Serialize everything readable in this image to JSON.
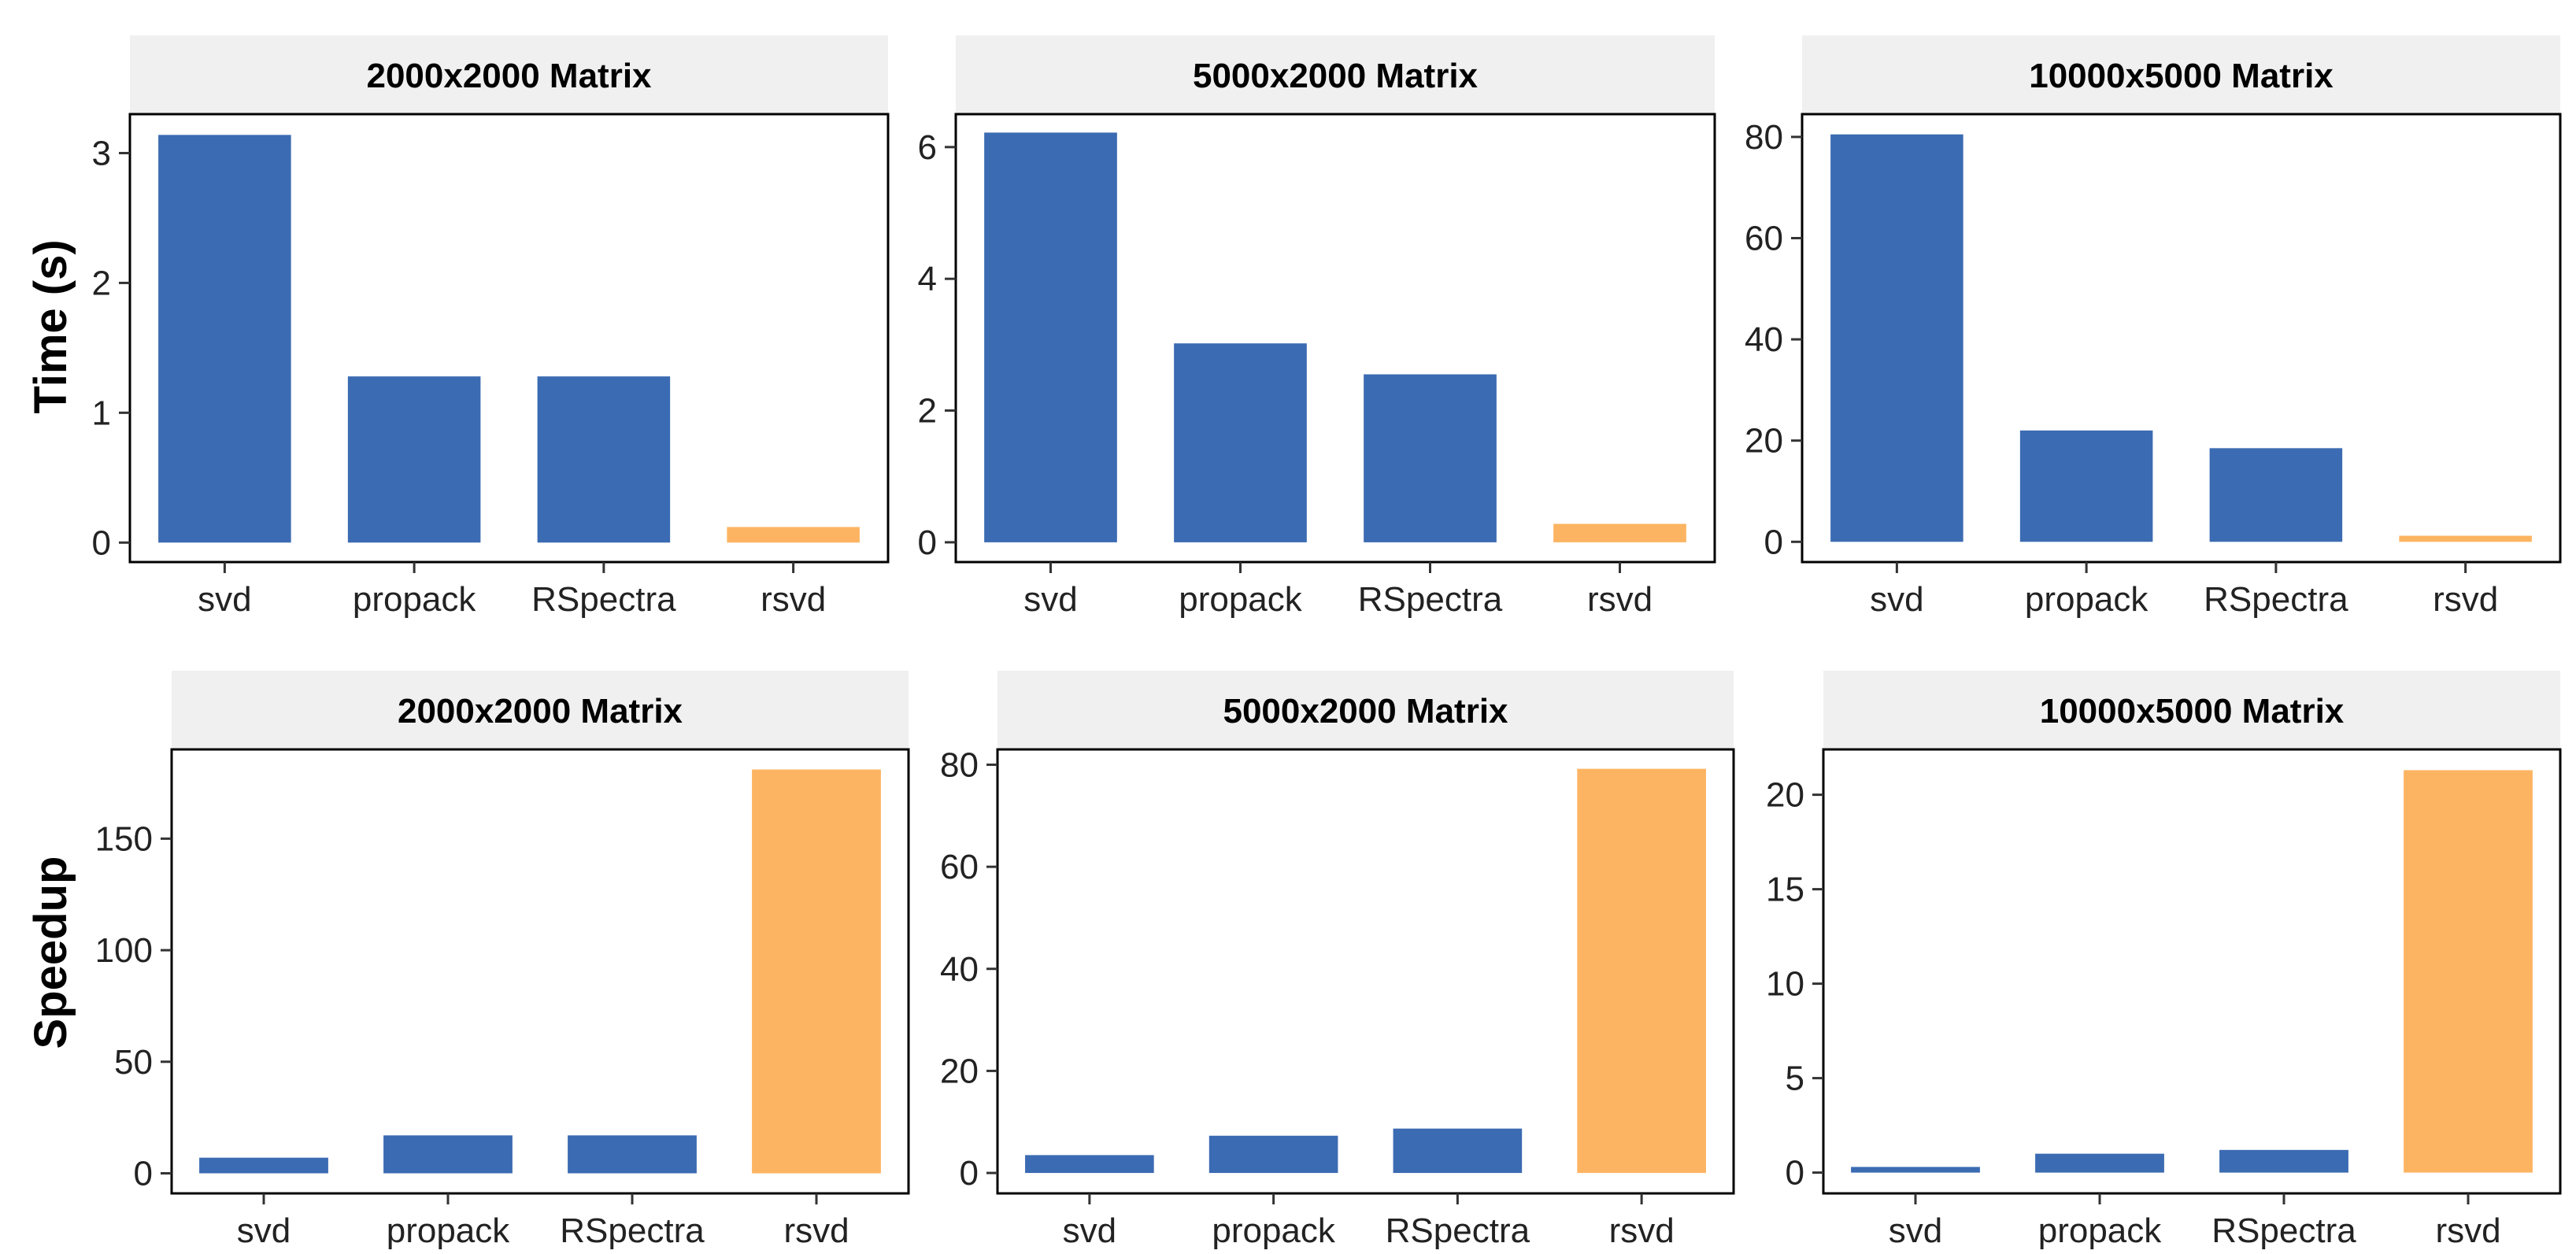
{
  "colors": {
    "default": "#3B6BB2",
    "highlight": "#FDB462",
    "strip": "#F0F0F0",
    "frame": "#000000"
  },
  "rows": [
    {
      "ylabel": "Time (s)"
    },
    {
      "ylabel": "Speedup"
    }
  ],
  "chart_data": [
    {
      "type": "bar",
      "title": "2000x2000 Matrix",
      "categories": [
        "svd",
        "propack",
        "RSpectra",
        "rsvd"
      ],
      "values": [
        3.14,
        1.28,
        1.28,
        0.12
      ],
      "highlight": [
        false,
        false,
        false,
        true
      ],
      "ylim": [
        -0.15,
        3.3
      ],
      "yticks": [
        0,
        1,
        2,
        3
      ],
      "ylabel": "Time (s)",
      "grid": false
    },
    {
      "type": "bar",
      "title": "5000x2000 Matrix",
      "categories": [
        "svd",
        "propack",
        "RSpectra",
        "rsvd"
      ],
      "values": [
        6.22,
        3.02,
        2.55,
        0.28
      ],
      "highlight": [
        false,
        false,
        false,
        true
      ],
      "ylim": [
        -0.3,
        6.5
      ],
      "yticks": [
        0,
        2,
        4,
        6
      ],
      "ylabel": "Time (s)",
      "grid": false
    },
    {
      "type": "bar",
      "title": "10000x5000 Matrix",
      "categories": [
        "svd",
        "propack",
        "RSpectra",
        "rsvd"
      ],
      "values": [
        80.5,
        22.0,
        18.5,
        1.2
      ],
      "highlight": [
        false,
        false,
        false,
        true
      ],
      "ylim": [
        -4,
        84.5
      ],
      "yticks": [
        0,
        20,
        40,
        60,
        80
      ],
      "ylabel": "Time (s)",
      "grid": false
    },
    {
      "type": "bar",
      "title": "2000x2000 Matrix",
      "categories": [
        "svd",
        "propack",
        "RSpectra",
        "rsvd"
      ],
      "values": [
        7,
        17,
        17,
        181
      ],
      "highlight": [
        false,
        false,
        false,
        true
      ],
      "ylim": [
        -9,
        190
      ],
      "yticks": [
        0,
        50,
        100,
        150
      ],
      "ylabel": "Speedup",
      "grid": false
    },
    {
      "type": "bar",
      "title": "5000x2000 Matrix",
      "categories": [
        "svd",
        "propack",
        "RSpectra",
        "rsvd"
      ],
      "values": [
        3.5,
        7.3,
        8.7,
        79.2
      ],
      "highlight": [
        false,
        false,
        false,
        true
      ],
      "ylim": [
        -4,
        83
      ],
      "yticks": [
        0,
        20,
        40,
        60,
        80
      ],
      "ylabel": "Speedup",
      "grid": false
    },
    {
      "type": "bar",
      "title": "10000x5000 Matrix",
      "categories": [
        "svd",
        "propack",
        "RSpectra",
        "rsvd"
      ],
      "values": [
        0.3,
        1.0,
        1.2,
        21.3
      ],
      "highlight": [
        false,
        false,
        false,
        true
      ],
      "ylim": [
        -1.1,
        22.4
      ],
      "yticks": [
        0,
        5,
        10,
        15,
        20
      ],
      "ylabel": "Speedup",
      "grid": false
    }
  ]
}
